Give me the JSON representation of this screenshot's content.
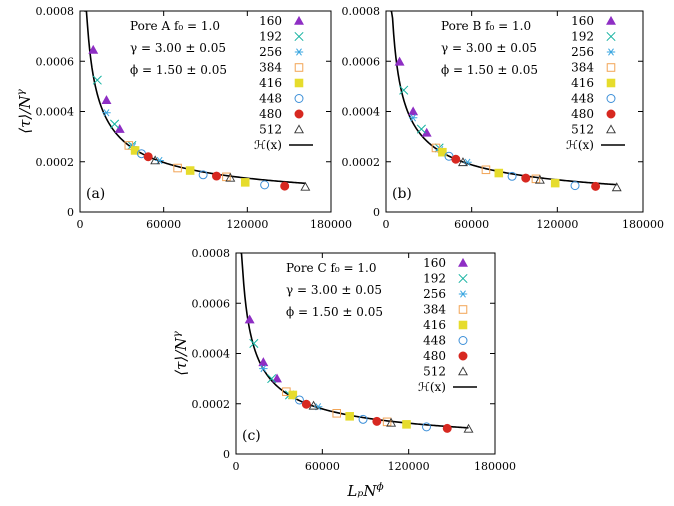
{
  "chart_data": [
    {
      "type": "scatter",
      "panel_label": "(a)",
      "pore_text": "Pore A  f₀ = 1.0",
      "gamma_text": "γ = 3.00 ± 0.05",
      "phi_text": "ϕ = 1.50 ± 0.05",
      "xlabel": "",
      "ylabel": "⟨τ⟩/N^γ",
      "xlim": [
        0,
        180000
      ],
      "ylim": [
        0,
        0.0008
      ],
      "xticks": [
        "0",
        "60000",
        "120000",
        "180000"
      ],
      "yticks": [
        "0",
        "0.0002",
        "0.0004",
        "0.0006",
        "0.0008"
      ],
      "legend": "top-right",
      "curve_label": "ℋ(x)",
      "series": [
        {
          "name": "160",
          "x": [
            9500,
            19000,
            28500
          ],
          "y": [
            0.000645,
            0.000445,
            0.00033
          ]
        },
        {
          "name": "192",
          "x": [
            12400,
            24800,
            37200
          ],
          "y": [
            0.000525,
            0.00035,
            0.000265
          ]
        },
        {
          "name": "256",
          "x": [
            19000,
            38100,
            57100
          ],
          "y": [
            0.000395,
            0.00026,
            0.000205
          ]
        },
        {
          "name": "384",
          "x": [
            35000,
            70000,
            105000
          ],
          "y": [
            0.000265,
            0.000175,
            0.00014
          ]
        },
        {
          "name": "416",
          "x": [
            39500,
            79000,
            118500
          ],
          "y": [
            0.000245,
            0.000165,
            0.000118
          ]
        },
        {
          "name": "448",
          "x": [
            44100,
            88300,
            132400
          ],
          "y": [
            0.000232,
            0.000148,
            0.000108
          ]
        },
        {
          "name": "480",
          "x": [
            48900,
            97900,
            146800
          ],
          "y": [
            0.00022,
            0.000143,
            0.000103
          ]
        },
        {
          "name": "512",
          "x": [
            53900,
            107800,
            161600
          ],
          "y": [
            0.000205,
            0.000136,
            0.0001
          ]
        }
      ]
    },
    {
      "type": "scatter",
      "panel_label": "(b)",
      "pore_text": "Pore B  f₀ = 1.0",
      "gamma_text": "γ = 3.00 ± 0.05",
      "phi_text": "ϕ = 1.50 ± 0.05",
      "xlabel": "",
      "ylabel": "",
      "xlim": [
        0,
        180000
      ],
      "ylim": [
        0,
        0.0008
      ],
      "xticks": [
        "0",
        "60000",
        "120000",
        "180000"
      ],
      "yticks": [
        "0",
        "0.0002",
        "0.0004",
        "0.0006",
        "0.0008"
      ],
      "legend": "top-right",
      "curve_label": "ℋ(x)",
      "series": [
        {
          "name": "160",
          "x": [
            9500,
            19000,
            28500
          ],
          "y": [
            0.000598,
            0.0004,
            0.000315
          ]
        },
        {
          "name": "192",
          "x": [
            12400,
            24800,
            37200
          ],
          "y": [
            0.000485,
            0.00033,
            0.000255
          ]
        },
        {
          "name": "256",
          "x": [
            19000,
            38100,
            57100
          ],
          "y": [
            0.000375,
            0.000248,
            0.000198
          ]
        },
        {
          "name": "384",
          "x": [
            35000,
            70000,
            105000
          ],
          "y": [
            0.000255,
            0.000168,
            0.000132
          ]
        },
        {
          "name": "416",
          "x": [
            39500,
            79000,
            118500
          ],
          "y": [
            0.000238,
            0.000155,
            0.000115
          ]
        },
        {
          "name": "448",
          "x": [
            44100,
            88300,
            132400
          ],
          "y": [
            0.000222,
            0.000142,
            0.000105
          ]
        },
        {
          "name": "480",
          "x": [
            48900,
            97900,
            146800
          ],
          "y": [
            0.00021,
            0.000135,
            0.000102
          ]
        },
        {
          "name": "512",
          "x": [
            53900,
            107800,
            161600
          ],
          "y": [
            0.000198,
            0.000128,
            9.8e-05
          ]
        }
      ]
    },
    {
      "type": "scatter",
      "panel_label": "(c)",
      "pore_text": "Pore C  f₀ = 1.0",
      "gamma_text": "γ = 3.00 ± 0.05",
      "phi_text": "ϕ = 1.50 ± 0.05",
      "xlabel": "LₚN^ϕ",
      "ylabel": "⟨τ⟩/N^γ",
      "xlim": [
        0,
        180000
      ],
      "ylim": [
        0,
        0.0008
      ],
      "xticks": [
        "0",
        "60000",
        "120000",
        "180000"
      ],
      "yticks": [
        "0",
        "0.0002",
        "0.0004",
        "0.0006",
        "0.0008"
      ],
      "legend": "top-right",
      "curve_label": "ℋ(x)",
      "series": [
        {
          "name": "160",
          "x": [
            9500,
            19000,
            28500
          ],
          "y": [
            0.000535,
            0.000365,
            0.0003
          ]
        },
        {
          "name": "192",
          "x": [
            12400,
            24800,
            37200
          ],
          "y": [
            0.00044,
            0.0003,
            0.000235
          ]
        },
        {
          "name": "256",
          "x": [
            19000,
            38100,
            57100
          ],
          "y": [
            0.00034,
            0.000232,
            0.000188
          ]
        },
        {
          "name": "384",
          "x": [
            35000,
            70000,
            105000
          ],
          "y": [
            0.000248,
            0.000162,
            0.000128
          ]
        },
        {
          "name": "416",
          "x": [
            39500,
            79000,
            118500
          ],
          "y": [
            0.000235,
            0.00015,
            0.000118
          ]
        },
        {
          "name": "448",
          "x": [
            44100,
            88300,
            132400
          ],
          "y": [
            0.000215,
            0.000138,
            0.000108
          ]
        },
        {
          "name": "480",
          "x": [
            48900,
            97900,
            146800
          ],
          "y": [
            0.000198,
            0.00013,
            0.000102
          ]
        },
        {
          "name": "512",
          "x": [
            53900,
            107800,
            161600
          ],
          "y": [
            0.000192,
            0.000124,
            0.0001
          ]
        }
      ]
    }
  ],
  "markers": [
    {
      "name": "160",
      "shape": "triangle-filled",
      "color": "#8e2ec4"
    },
    {
      "name": "192",
      "shape": "cross",
      "color": "#13b2a0"
    },
    {
      "name": "256",
      "shape": "asterisk",
      "color": "#3aa6e0"
    },
    {
      "name": "384",
      "shape": "square-open",
      "color": "#f2a455"
    },
    {
      "name": "416",
      "shape": "square-filled",
      "color": "#e6dc2c"
    },
    {
      "name": "448",
      "shape": "circle-open",
      "color": "#3c8fd8"
    },
    {
      "name": "480",
      "shape": "circle-filled",
      "color": "#d72820"
    },
    {
      "name": "512",
      "shape": "triangle-open",
      "color": "#333333"
    }
  ],
  "curve_color": "#000000"
}
